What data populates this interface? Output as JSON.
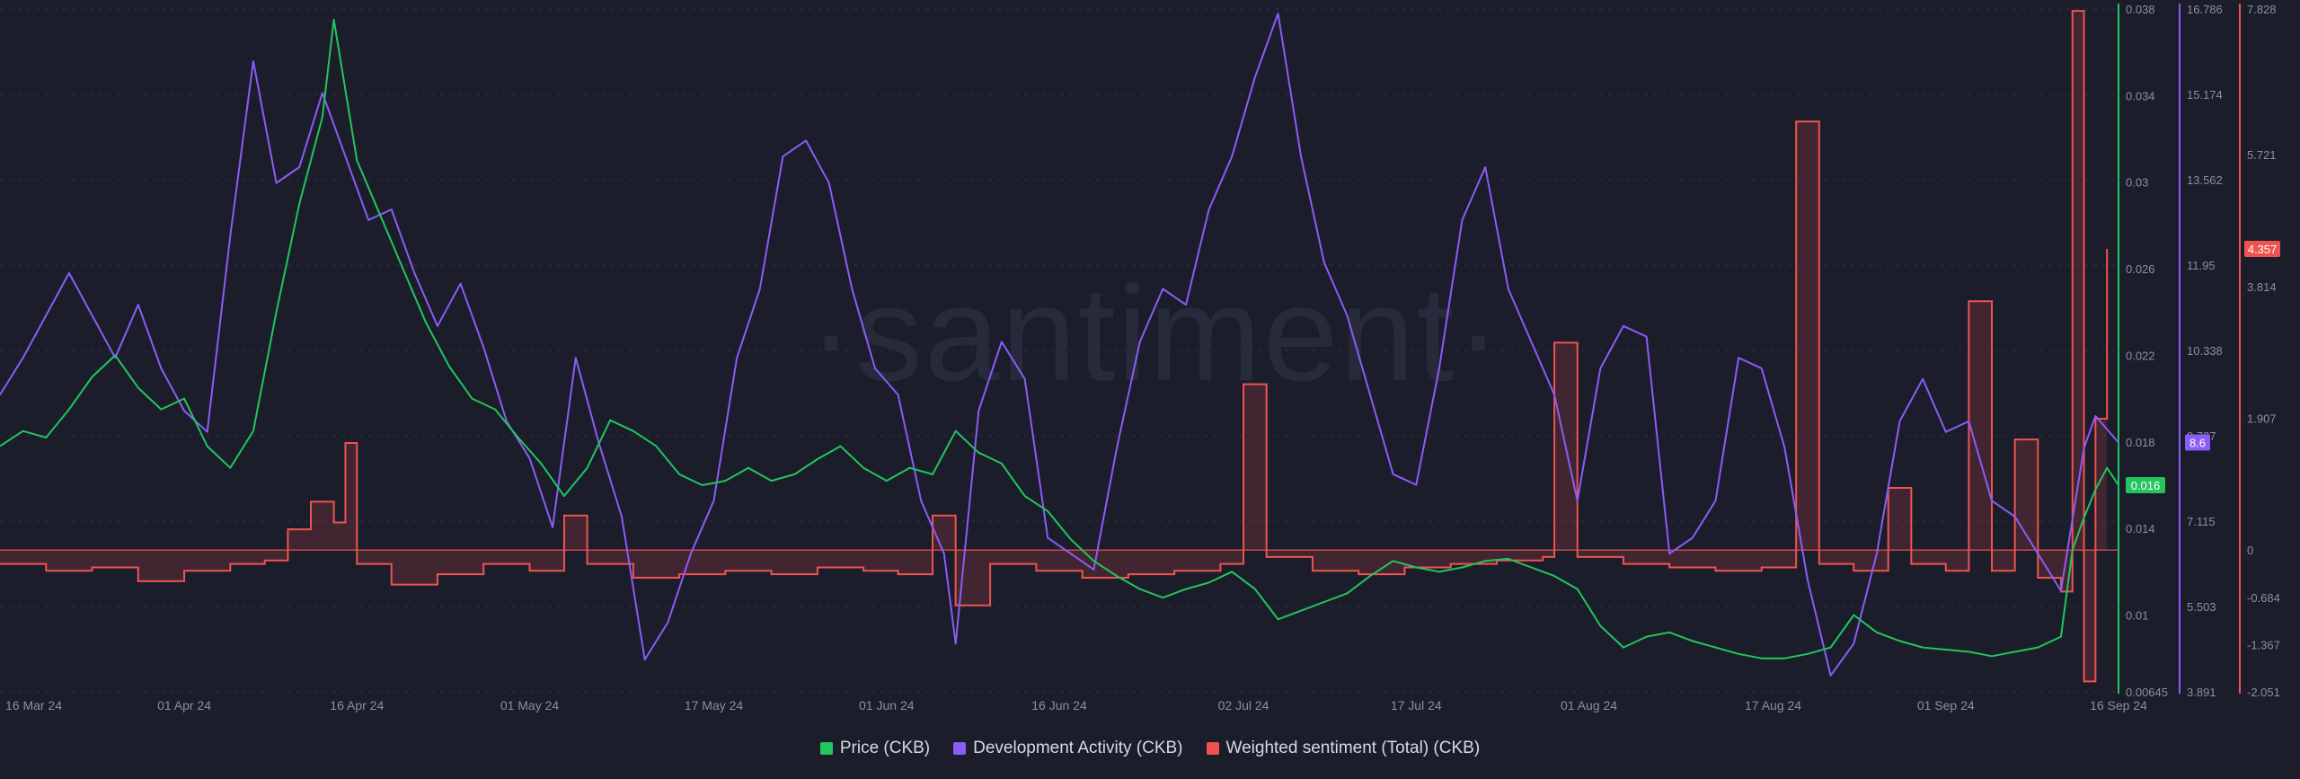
{
  "chart_data": {
    "type": "line",
    "watermark": "·santiment·",
    "x_ticks": [
      "16 Mar 24",
      "01 Apr 24",
      "16 Apr 24",
      "01 May 24",
      "17 May 24",
      "01 Jun 24",
      "16 Jun 24",
      "02 Jul 24",
      "17 Jul 24",
      "01 Aug 24",
      "17 Aug 24",
      "01 Sep 24",
      "16 Sep 24"
    ],
    "x_range": [
      "2024-03-16",
      "2024-09-16"
    ],
    "series": [
      {
        "name": "Price (CKB)",
        "color": "#22c55e",
        "axis_ticks": [
          "0.038",
          "0.034",
          "0.03",
          "0.026",
          "0.022",
          "0.018",
          "0.014",
          "0.01",
          "0.00645"
        ],
        "ylim": [
          0.00645,
          0.038
        ],
        "current_label": "0.016",
        "points": [
          [
            "2024-03-16",
            0.0178
          ],
          [
            "2024-03-18",
            0.0185
          ],
          [
            "2024-03-20",
            0.0182
          ],
          [
            "2024-03-22",
            0.0195
          ],
          [
            "2024-03-24",
            0.021
          ],
          [
            "2024-03-26",
            0.022
          ],
          [
            "2024-03-28",
            0.0205
          ],
          [
            "2024-03-30",
            0.0195
          ],
          [
            "2024-04-01",
            0.02
          ],
          [
            "2024-04-03",
            0.0178
          ],
          [
            "2024-04-05",
            0.0168
          ],
          [
            "2024-04-07",
            0.0185
          ],
          [
            "2024-04-09",
            0.024
          ],
          [
            "2024-04-11",
            0.029
          ],
          [
            "2024-04-13",
            0.033
          ],
          [
            "2024-04-14",
            0.0375
          ],
          [
            "2024-04-16",
            0.031
          ],
          [
            "2024-04-18",
            0.0285
          ],
          [
            "2024-04-20",
            0.026
          ],
          [
            "2024-04-22",
            0.0235
          ],
          [
            "2024-04-24",
            0.0215
          ],
          [
            "2024-04-26",
            0.02
          ],
          [
            "2024-04-28",
            0.0195
          ],
          [
            "2024-04-30",
            0.0182
          ],
          [
            "2024-05-02",
            0.017
          ],
          [
            "2024-05-04",
            0.0155
          ],
          [
            "2024-05-06",
            0.0168
          ],
          [
            "2024-05-08",
            0.019
          ],
          [
            "2024-05-10",
            0.0185
          ],
          [
            "2024-05-12",
            0.0178
          ],
          [
            "2024-05-14",
            0.0165
          ],
          [
            "2024-05-16",
            0.016
          ],
          [
            "2024-05-18",
            0.0162
          ],
          [
            "2024-05-20",
            0.0168
          ],
          [
            "2024-05-22",
            0.0162
          ],
          [
            "2024-05-24",
            0.0165
          ],
          [
            "2024-05-26",
            0.0172
          ],
          [
            "2024-05-28",
            0.0178
          ],
          [
            "2024-05-30",
            0.0168
          ],
          [
            "2024-06-01",
            0.0162
          ],
          [
            "2024-06-03",
            0.0168
          ],
          [
            "2024-06-05",
            0.0165
          ],
          [
            "2024-06-07",
            0.0185
          ],
          [
            "2024-06-09",
            0.0175
          ],
          [
            "2024-06-11",
            0.017
          ],
          [
            "2024-06-13",
            0.0155
          ],
          [
            "2024-06-15",
            0.0148
          ],
          [
            "2024-06-17",
            0.0135
          ],
          [
            "2024-06-19",
            0.0125
          ],
          [
            "2024-06-21",
            0.0118
          ],
          [
            "2024-06-23",
            0.0112
          ],
          [
            "2024-06-25",
            0.0108
          ],
          [
            "2024-06-27",
            0.0112
          ],
          [
            "2024-06-29",
            0.0115
          ],
          [
            "2024-07-01",
            0.012
          ],
          [
            "2024-07-03",
            0.0112
          ],
          [
            "2024-07-05",
            0.0098
          ],
          [
            "2024-07-07",
            0.0102
          ],
          [
            "2024-07-09",
            0.0106
          ],
          [
            "2024-07-11",
            0.011
          ],
          [
            "2024-07-13",
            0.0118
          ],
          [
            "2024-07-15",
            0.0125
          ],
          [
            "2024-07-17",
            0.0122
          ],
          [
            "2024-07-19",
            0.012
          ],
          [
            "2024-07-21",
            0.0122
          ],
          [
            "2024-07-23",
            0.0125
          ],
          [
            "2024-07-25",
            0.0126
          ],
          [
            "2024-07-27",
            0.0122
          ],
          [
            "2024-07-29",
            0.0118
          ],
          [
            "2024-07-31",
            0.0112
          ],
          [
            "2024-08-02",
            0.0095
          ],
          [
            "2024-08-04",
            0.0085
          ],
          [
            "2024-08-06",
            0.009
          ],
          [
            "2024-08-08",
            0.0092
          ],
          [
            "2024-08-10",
            0.0088
          ],
          [
            "2024-08-12",
            0.0085
          ],
          [
            "2024-08-14",
            0.0082
          ],
          [
            "2024-08-16",
            0.008
          ],
          [
            "2024-08-18",
            0.008
          ],
          [
            "2024-08-20",
            0.0082
          ],
          [
            "2024-08-22",
            0.0085
          ],
          [
            "2024-08-24",
            0.01
          ],
          [
            "2024-08-26",
            0.0092
          ],
          [
            "2024-08-28",
            0.0088
          ],
          [
            "2024-08-30",
            0.0085
          ],
          [
            "2024-09-01",
            0.0084
          ],
          [
            "2024-09-03",
            0.0083
          ],
          [
            "2024-09-05",
            0.0081
          ],
          [
            "2024-09-07",
            0.0083
          ],
          [
            "2024-09-09",
            0.0085
          ],
          [
            "2024-09-11",
            0.009
          ],
          [
            "2024-09-12",
            0.013
          ],
          [
            "2024-09-13",
            0.0145
          ],
          [
            "2024-09-14",
            0.0158
          ],
          [
            "2024-09-15",
            0.0168
          ],
          [
            "2024-09-16",
            0.016
          ]
        ]
      },
      {
        "name": "Development Activity (CKB)",
        "color": "#8b5cf6",
        "axis_ticks": [
          "16.786",
          "15.174",
          "13.562",
          "11.95",
          "10.338",
          "8.727",
          "7.115",
          "5.503",
          "3.891"
        ],
        "ylim": [
          3.891,
          16.786
        ],
        "current_label": "8.6",
        "points": [
          [
            "2024-03-16",
            9.5
          ],
          [
            "2024-03-18",
            10.2
          ],
          [
            "2024-03-20",
            11.0
          ],
          [
            "2024-03-22",
            11.8
          ],
          [
            "2024-03-24",
            11.0
          ],
          [
            "2024-03-26",
            10.2
          ],
          [
            "2024-03-28",
            11.2
          ],
          [
            "2024-03-30",
            10.0
          ],
          [
            "2024-04-01",
            9.2
          ],
          [
            "2024-04-03",
            8.8
          ],
          [
            "2024-04-05",
            12.5
          ],
          [
            "2024-04-07",
            15.8
          ],
          [
            "2024-04-09",
            13.5
          ],
          [
            "2024-04-11",
            13.8
          ],
          [
            "2024-04-13",
            15.2
          ],
          [
            "2024-04-15",
            14.0
          ],
          [
            "2024-04-17",
            12.8
          ],
          [
            "2024-04-19",
            13.0
          ],
          [
            "2024-04-21",
            11.8
          ],
          [
            "2024-04-23",
            10.8
          ],
          [
            "2024-04-25",
            11.6
          ],
          [
            "2024-04-27",
            10.4
          ],
          [
            "2024-04-29",
            9.0
          ],
          [
            "2024-05-01",
            8.3
          ],
          [
            "2024-05-03",
            7.0
          ],
          [
            "2024-05-05",
            10.2
          ],
          [
            "2024-05-07",
            8.6
          ],
          [
            "2024-05-09",
            7.2
          ],
          [
            "2024-05-11",
            4.5
          ],
          [
            "2024-05-13",
            5.2
          ],
          [
            "2024-05-15",
            6.5
          ],
          [
            "2024-05-17",
            7.5
          ],
          [
            "2024-05-19",
            10.2
          ],
          [
            "2024-05-21",
            11.5
          ],
          [
            "2024-05-23",
            14.0
          ],
          [
            "2024-05-25",
            14.3
          ],
          [
            "2024-05-27",
            13.5
          ],
          [
            "2024-05-29",
            11.5
          ],
          [
            "2024-05-31",
            10.0
          ],
          [
            "2024-06-02",
            9.5
          ],
          [
            "2024-06-04",
            7.5
          ],
          [
            "2024-06-06",
            6.5
          ],
          [
            "2024-06-07",
            4.8
          ],
          [
            "2024-06-09",
            9.2
          ],
          [
            "2024-06-11",
            10.5
          ],
          [
            "2024-06-13",
            9.8
          ],
          [
            "2024-06-15",
            6.8
          ],
          [
            "2024-06-17",
            6.5
          ],
          [
            "2024-06-19",
            6.2
          ],
          [
            "2024-06-21",
            8.5
          ],
          [
            "2024-06-23",
            10.5
          ],
          [
            "2024-06-25",
            11.5
          ],
          [
            "2024-06-27",
            11.2
          ],
          [
            "2024-06-29",
            13.0
          ],
          [
            "2024-07-01",
            14.0
          ],
          [
            "2024-07-03",
            15.5
          ],
          [
            "2024-07-05",
            16.7
          ],
          [
            "2024-07-07",
            14.0
          ],
          [
            "2024-07-09",
            12.0
          ],
          [
            "2024-07-11",
            11.0
          ],
          [
            "2024-07-13",
            9.5
          ],
          [
            "2024-07-15",
            8.0
          ],
          [
            "2024-07-17",
            7.8
          ],
          [
            "2024-07-19",
            10.0
          ],
          [
            "2024-07-21",
            12.8
          ],
          [
            "2024-07-23",
            13.8
          ],
          [
            "2024-07-25",
            11.5
          ],
          [
            "2024-07-27",
            10.5
          ],
          [
            "2024-07-29",
            9.5
          ],
          [
            "2024-07-31",
            7.5
          ],
          [
            "2024-08-02",
            10.0
          ],
          [
            "2024-08-04",
            10.8
          ],
          [
            "2024-08-06",
            10.6
          ],
          [
            "2024-08-08",
            6.5
          ],
          [
            "2024-08-10",
            6.8
          ],
          [
            "2024-08-12",
            7.5
          ],
          [
            "2024-08-14",
            10.2
          ],
          [
            "2024-08-16",
            10.0
          ],
          [
            "2024-08-18",
            8.5
          ],
          [
            "2024-08-20",
            6.0
          ],
          [
            "2024-08-22",
            4.2
          ],
          [
            "2024-08-24",
            4.8
          ],
          [
            "2024-08-26",
            6.5
          ],
          [
            "2024-08-28",
            9.0
          ],
          [
            "2024-08-30",
            9.8
          ],
          [
            "2024-09-01",
            8.8
          ],
          [
            "2024-09-03",
            9.0
          ],
          [
            "2024-09-05",
            7.5
          ],
          [
            "2024-09-07",
            7.2
          ],
          [
            "2024-09-09",
            6.5
          ],
          [
            "2024-09-11",
            5.8
          ],
          [
            "2024-09-13",
            8.5
          ],
          [
            "2024-09-14",
            9.1
          ],
          [
            "2024-09-16",
            8.6
          ]
        ]
      },
      {
        "name": "Weighted sentiment (Total) (CKB)",
        "color": "#ef5350",
        "axis_ticks": [
          "7.828",
          "5.721",
          "3.814",
          "1.907",
          "0",
          "-0.684",
          "-1.367",
          "-2.051"
        ],
        "ylim": [
          -2.051,
          7.828
        ],
        "current_label": "4.357",
        "points": [
          [
            "2024-03-16",
            -0.2
          ],
          [
            "2024-03-20",
            -0.3
          ],
          [
            "2024-03-24",
            -0.25
          ],
          [
            "2024-03-28",
            -0.45
          ],
          [
            "2024-04-01",
            -0.3
          ],
          [
            "2024-04-05",
            -0.2
          ],
          [
            "2024-04-08",
            -0.15
          ],
          [
            "2024-04-10",
            0.3
          ],
          [
            "2024-04-12",
            0.7
          ],
          [
            "2024-04-14",
            0.4
          ],
          [
            "2024-04-15",
            1.55
          ],
          [
            "2024-04-16",
            -0.2
          ],
          [
            "2024-04-19",
            -0.5
          ],
          [
            "2024-04-23",
            -0.35
          ],
          [
            "2024-04-27",
            -0.2
          ],
          [
            "2024-05-01",
            -0.3
          ],
          [
            "2024-05-04",
            0.5
          ],
          [
            "2024-05-06",
            -0.2
          ],
          [
            "2024-05-10",
            -0.4
          ],
          [
            "2024-05-14",
            -0.35
          ],
          [
            "2024-05-18",
            -0.3
          ],
          [
            "2024-05-22",
            -0.35
          ],
          [
            "2024-05-26",
            -0.25
          ],
          [
            "2024-05-30",
            -0.3
          ],
          [
            "2024-06-02",
            -0.35
          ],
          [
            "2024-06-05",
            0.5
          ],
          [
            "2024-06-07",
            -0.8
          ],
          [
            "2024-06-10",
            -0.2
          ],
          [
            "2024-06-14",
            -0.3
          ],
          [
            "2024-06-18",
            -0.4
          ],
          [
            "2024-06-22",
            -0.35
          ],
          [
            "2024-06-26",
            -0.3
          ],
          [
            "2024-06-30",
            -0.2
          ],
          [
            "2024-07-02",
            2.4
          ],
          [
            "2024-07-04",
            -0.1
          ],
          [
            "2024-07-08",
            -0.3
          ],
          [
            "2024-07-12",
            -0.35
          ],
          [
            "2024-07-16",
            -0.25
          ],
          [
            "2024-07-20",
            -0.2
          ],
          [
            "2024-07-24",
            -0.15
          ],
          [
            "2024-07-28",
            -0.1
          ],
          [
            "2024-07-29",
            3.0
          ],
          [
            "2024-07-31",
            -0.1
          ],
          [
            "2024-08-04",
            -0.2
          ],
          [
            "2024-08-08",
            -0.25
          ],
          [
            "2024-08-12",
            -0.3
          ],
          [
            "2024-08-16",
            -0.25
          ],
          [
            "2024-08-19",
            6.2
          ],
          [
            "2024-08-21",
            -0.2
          ],
          [
            "2024-08-24",
            -0.3
          ],
          [
            "2024-08-27",
            0.9
          ],
          [
            "2024-08-29",
            -0.2
          ],
          [
            "2024-09-01",
            -0.3
          ],
          [
            "2024-09-03",
            3.6
          ],
          [
            "2024-09-05",
            -0.3
          ],
          [
            "2024-09-07",
            1.6
          ],
          [
            "2024-09-09",
            -0.4
          ],
          [
            "2024-09-11",
            -0.6
          ],
          [
            "2024-09-12",
            7.8
          ],
          [
            "2024-09-13",
            -1.9
          ],
          [
            "2024-09-14",
            1.9
          ],
          [
            "2024-09-15",
            4.357
          ]
        ]
      }
    ],
    "legend": [
      {
        "label": "Price (CKB)",
        "color": "#22c55e"
      },
      {
        "label": "Development Activity (CKB)",
        "color": "#8b5cf6"
      },
      {
        "label": "Weighted sentiment (Total) (CKB)",
        "color": "#ef5350"
      }
    ],
    "grid": true,
    "legend_position": "bottom"
  }
}
